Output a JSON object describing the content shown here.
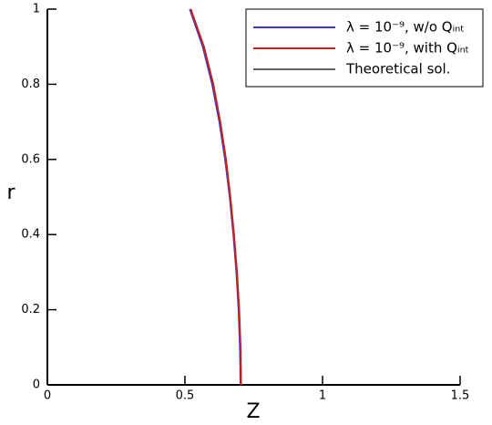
{
  "chart_data": {
    "type": "line",
    "xlabel": "Z",
    "ylabel": "r",
    "xlim": [
      0,
      1.5
    ],
    "xticks": [
      0,
      0.5,
      1,
      1.5
    ],
    "ylim": [
      0,
      1
    ],
    "yticks": [
      0,
      0.2,
      0.4,
      0.6,
      0.8,
      1
    ],
    "legend": "upper right",
    "series": [
      {
        "name": "λ = 10⁻⁹, w/o Qᵢₙₜ",
        "color": "#3a3ac8",
        "x": [
          0.702,
          0.7,
          0.695,
          0.687,
          0.676,
          0.663,
          0.646,
          0.625,
          0.599,
          0.565,
          0.518
        ],
        "values": [
          0,
          0.1,
          0.2,
          0.3,
          0.4,
          0.5,
          0.6,
          0.7,
          0.8,
          0.9,
          1
        ]
      },
      {
        "name": "λ = 10⁻⁹, with Qᵢₙₜ",
        "color": "#c81e1e",
        "x": [
          0.704,
          0.702,
          0.697,
          0.689,
          0.678,
          0.665,
          0.649,
          0.628,
          0.603,
          0.569,
          0.521
        ],
        "values": [
          0,
          0.1,
          0.2,
          0.3,
          0.4,
          0.5,
          0.6,
          0.7,
          0.8,
          0.9,
          1
        ]
      },
      {
        "name": "Theoretical sol.",
        "color": "#606060",
        "x": [
          0.703,
          0.701,
          0.696,
          0.688,
          0.677,
          0.664,
          0.648,
          0.627,
          0.602,
          0.568,
          0.52
        ],
        "values": [
          0,
          0.1,
          0.2,
          0.3,
          0.4,
          0.5,
          0.6,
          0.7,
          0.8,
          0.9,
          1
        ]
      }
    ]
  }
}
